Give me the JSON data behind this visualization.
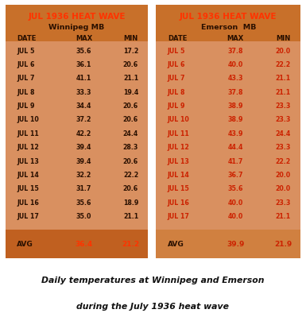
{
  "title_text": "JUL 1936 HEAT WAVE",
  "winnipeg_subtitle": "Winnipeg MB",
  "emerson_subtitle": "Emerson  MB",
  "col_headers": [
    "DATE",
    "MAX",
    "MIN"
  ],
  "winnipeg_data": [
    [
      "JUL 5",
      "35.6",
      "17.2"
    ],
    [
      "JUL 6",
      "36.1",
      "20.6"
    ],
    [
      "JUL 7",
      "41.1",
      "21.1"
    ],
    [
      "JUL 8",
      "33.3",
      "19.4"
    ],
    [
      "JUL 9",
      "34.4",
      "20.6"
    ],
    [
      "JUL 10",
      "37.2",
      "20.6"
    ],
    [
      "JUL 11",
      "42.2",
      "24.4"
    ],
    [
      "JUL 12",
      "39.4",
      "28.3"
    ],
    [
      "JUL 13",
      "39.4",
      "20.6"
    ],
    [
      "JUL 14",
      "32.2",
      "22.2"
    ],
    [
      "JUL 15",
      "31.7",
      "20.6"
    ],
    [
      "JUL 16",
      "35.6",
      "18.9"
    ],
    [
      "JUL 17",
      "35.0",
      "21.1"
    ]
  ],
  "winnipeg_avg": [
    "36.4",
    "21.2"
  ],
  "emerson_data": [
    [
      "JUL 5",
      "37.8",
      "20.0"
    ],
    [
      "JUL 6",
      "40.0",
      "22.2"
    ],
    [
      "JUL 7",
      "43.3",
      "21.1"
    ],
    [
      "JUL 8",
      "37.8",
      "21.1"
    ],
    [
      "JUL 9",
      "38.9",
      "23.3"
    ],
    [
      "JUL 10",
      "38.9",
      "23.3"
    ],
    [
      "JUL 11",
      "43.9",
      "24.4"
    ],
    [
      "JUL 12",
      "44.4",
      "23.3"
    ],
    [
      "JUL 13",
      "41.7",
      "22.2"
    ],
    [
      "JUL 14",
      "36.7",
      "20.0"
    ],
    [
      "JUL 15",
      "35.6",
      "20.0"
    ],
    [
      "JUL 16",
      "40.0",
      "23.3"
    ],
    [
      "JUL 17",
      "40.0",
      "21.1"
    ]
  ],
  "emerson_avg": [
    "39.9",
    "21.9"
  ],
  "bg_outer": "#C8702A",
  "bg_inner": "#D99060",
  "bg_avg_winnipeg": "#C06020",
  "bg_avg_emerson": "#D08040",
  "title_color": "#FF3300",
  "subtitle_color": "#2A1000",
  "header_color": "#2A1000",
  "data_color_winnipeg_date": "#2A1000",
  "data_color_winnipeg_val": "#2A1000",
  "data_color_emerson": "#CC2200",
  "avg_label_color": "#2A1000",
  "avg_value_color_winnipeg": "#FF3300",
  "avg_value_color_emerson": "#CC2200",
  "caption_color": "#111111",
  "figure_bg": "#FFFFFF",
  "caption_line1": "Daily temperatures at Winnipeg and Emerson",
  "caption_line2": "during the July 1936 heat wave"
}
